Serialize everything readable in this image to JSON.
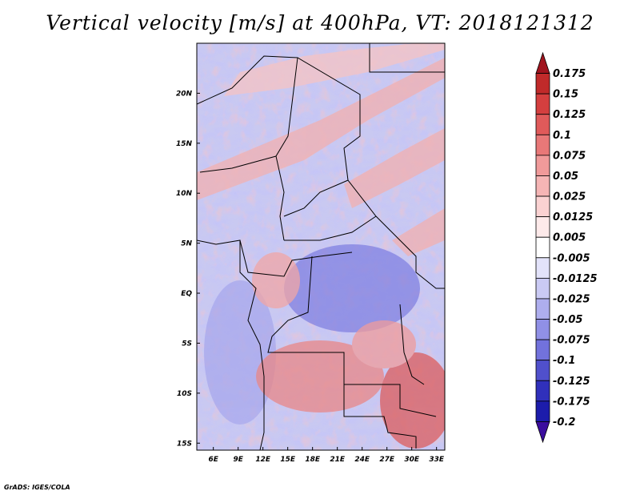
{
  "chart_data": {
    "type": "heatmap",
    "title": "Vertical velocity [m/s] at 400hPa, VT: 2018121312",
    "x_ticks": [
      "6E",
      "9E",
      "12E",
      "15E",
      "18E",
      "21E",
      "24E",
      "27E",
      "30E",
      "33E"
    ],
    "x_tick_values": [
      6,
      9,
      12,
      15,
      18,
      21,
      24,
      27,
      30,
      33
    ],
    "y_ticks": [
      "20N",
      "15N",
      "10N",
      "5N",
      "EQ",
      "5S",
      "10S",
      "15S"
    ],
    "y_tick_values": [
      20,
      15,
      10,
      5,
      0,
      -5,
      -10,
      -15
    ],
    "xlim": [
      4,
      34
    ],
    "ylim": [
      -15.7,
      25
    ],
    "colorbar": {
      "levels": [
        "0.175",
        "0.15",
        "0.125",
        "0.1",
        "0.075",
        "0.05",
        "0.025",
        "0.0125",
        "0.005",
        "-0.005",
        "-0.0125",
        "-0.025",
        "-0.05",
        "-0.075",
        "-0.1",
        "-0.125",
        "-0.175",
        "-0.2"
      ],
      "colors": [
        "#a0141e",
        "#c02a2a",
        "#d43f3f",
        "#e05a5a",
        "#e87878",
        "#f09a9a",
        "#f5b5b5",
        "#fad2d2",
        "#fdeaea",
        "#ffffff",
        "#e3e3fa",
        "#cacaf4",
        "#aeaeee",
        "#9090e6",
        "#7272dc",
        "#5050cc",
        "#3030bb",
        "#1c1cab",
        "#3b0d9e"
      ]
    }
  },
  "credit": "GrADS: IGES/COLA"
}
